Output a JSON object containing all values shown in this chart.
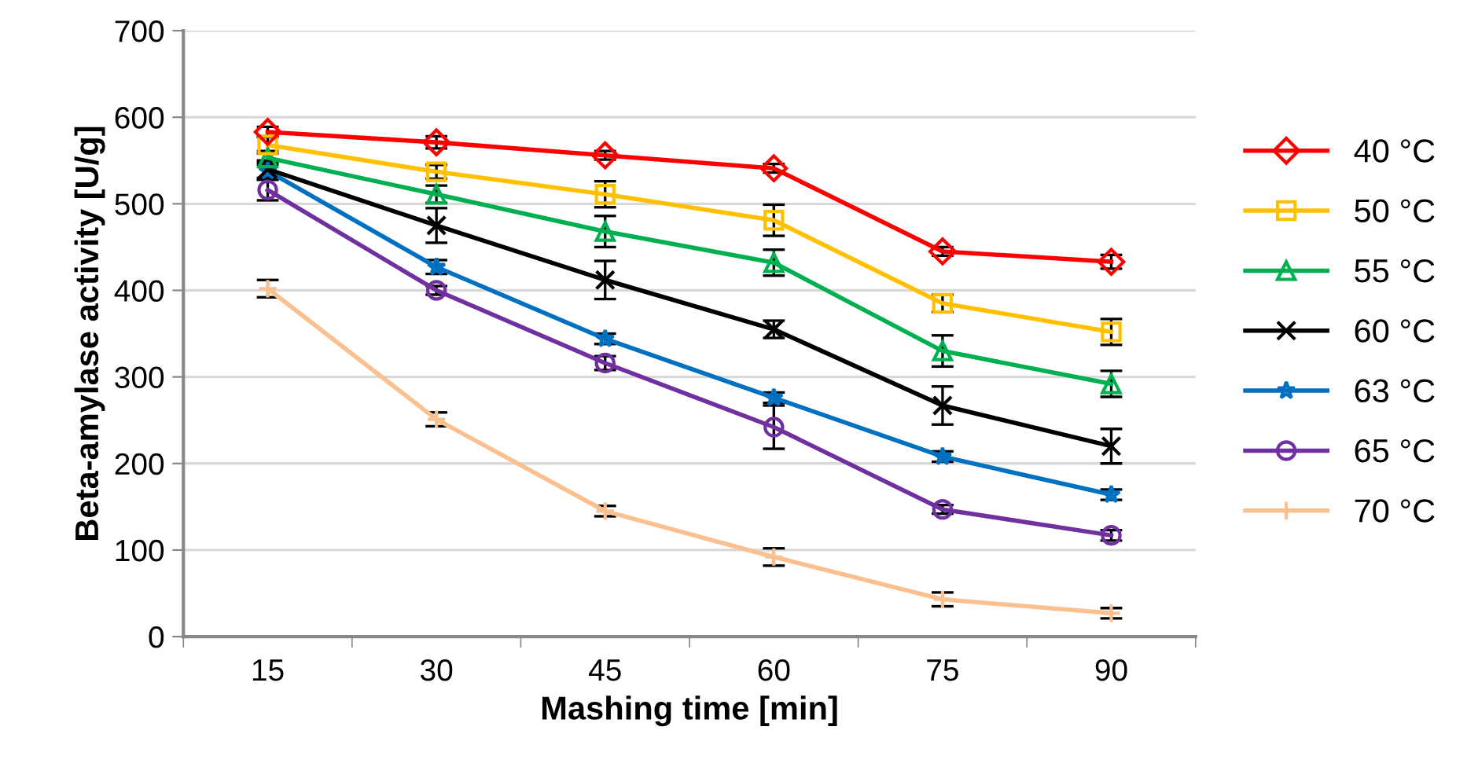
{
  "chart_data": {
    "type": "line",
    "xlabel": "Mashing time [min]",
    "ylabel": "Beta-amylase activity [U/g]",
    "categories": [
      "15",
      "30",
      "45",
      "60",
      "75",
      "90"
    ],
    "ylim": [
      0,
      700
    ],
    "yticks": [
      0,
      100,
      200,
      300,
      400,
      500,
      600,
      700
    ],
    "grid": "y",
    "legend": "right",
    "series": [
      {
        "name": "40 °C",
        "color": "#ff0000",
        "marker": "diamond",
        "values": [
          583,
          571,
          556,
          541,
          445,
          433
        ],
        "errors": [
          6,
          7,
          5,
          5,
          5,
          8
        ]
      },
      {
        "name": "50 °C",
        "color": "#ffc000",
        "marker": "square",
        "values": [
          568,
          537,
          511,
          481,
          385,
          352
        ],
        "errors": [
          10,
          8,
          15,
          18,
          10,
          15
        ]
      },
      {
        "name": "55 °C",
        "color": "#00b050",
        "marker": "triangle",
        "values": [
          553,
          511,
          468,
          432,
          330,
          292
        ],
        "errors": [
          8,
          10,
          18,
          15,
          18,
          15
        ]
      },
      {
        "name": "60 °C",
        "color": "#000000",
        "marker": "x",
        "values": [
          540,
          475,
          412,
          355,
          267,
          220
        ],
        "errors": [
          10,
          20,
          22,
          10,
          22,
          20
        ]
      },
      {
        "name": "63 °C",
        "color": "#0070c0",
        "marker": "star",
        "values": [
          538,
          427,
          344,
          276,
          208,
          164
        ],
        "errors": [
          10,
          8,
          6,
          6,
          6,
          6
        ]
      },
      {
        "name": "65 °C",
        "color": "#7030a0",
        "marker": "circle",
        "values": [
          516,
          400,
          316,
          242,
          147,
          117
        ],
        "errors": [
          12,
          5,
          8,
          25,
          5,
          6
        ]
      },
      {
        "name": "70 °C",
        "color": "#fac090",
        "marker": "cross",
        "values": [
          402,
          251,
          145,
          92,
          43,
          27
        ],
        "errors": [
          10,
          8,
          6,
          10,
          8,
          6
        ]
      }
    ]
  }
}
